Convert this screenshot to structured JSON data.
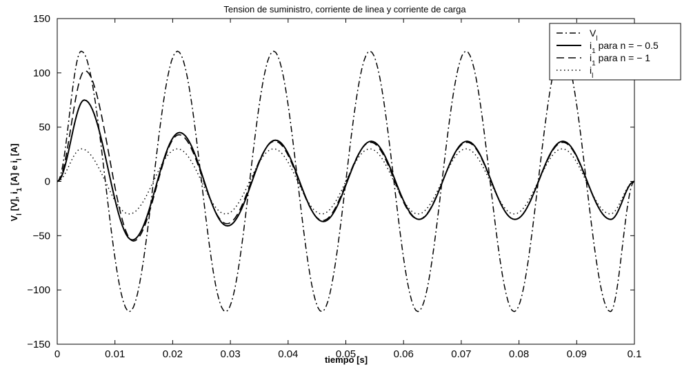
{
  "chart_data": {
    "type": "line",
    "title": "Tension de suministro, corriente de linea y corriente de carga",
    "xlabel": "tiempo [s]",
    "ylabel": {
      "parts": [
        {
          "t": "V",
          "sub": false
        },
        {
          "t": "l",
          "sub": true
        },
        {
          "t": " [V], i",
          "sub": false
        },
        {
          "t": "1",
          "sub": true
        },
        {
          "t": " [A] e i",
          "sub": false
        },
        {
          "t": "l",
          "sub": true
        },
        {
          "t": " [A]",
          "sub": false
        }
      ]
    },
    "xlim": [
      0,
      0.1
    ],
    "ylim": [
      -150,
      150
    ],
    "xticks": [
      0,
      0.01,
      0.02,
      0.03,
      0.04,
      0.05,
      0.06,
      0.07,
      0.08,
      0.09,
      0.1
    ],
    "xtick_labels": [
      "0",
      "0.01",
      "0.02",
      "0.03",
      "0.04",
      "0.05",
      "0.06",
      "0.07",
      "0.08",
      "0.09",
      "0.1"
    ],
    "yticks": [
      -150,
      -100,
      -50,
      0,
      50,
      100,
      150
    ],
    "ytick_labels": [
      "−150",
      "−100",
      "−50",
      "0",
      "50",
      "100",
      "150"
    ],
    "grid": false,
    "legend_position": "top-right",
    "legend": [
      {
        "main": "V",
        "sub": "l",
        "rest": ""
      },
      {
        "main": "i",
        "sub": "1",
        "rest": " para n = − 0.5"
      },
      {
        "main": "i",
        "sub": "1",
        "rest": " para n = − 1"
      },
      {
        "main": "i",
        "sub": "l",
        "rest": ""
      }
    ],
    "series": [
      {
        "style": "dashdot",
        "x": [
          0,
          0.00417,
          0.0125,
          0.02083,
          0.02917,
          0.0375,
          0.04583,
          0.05417,
          0.0625,
          0.07083,
          0.07917,
          0.0875,
          0.09583,
          0.1
        ],
        "y": [
          0,
          120,
          -120,
          120,
          -120,
          120,
          -120,
          120,
          -120,
          120,
          -120,
          120,
          -120,
          0
        ]
      },
      {
        "style": "solid",
        "x": [
          0,
          0.0047,
          0.013,
          0.0212,
          0.0295,
          0.0378,
          0.0461,
          0.0544,
          0.0627,
          0.071,
          0.0793,
          0.0876,
          0.0959,
          0.1
        ],
        "y": [
          0,
          75,
          -54,
          45,
          -41,
          38,
          -37,
          37,
          -35,
          37,
          -35,
          37,
          -35,
          0
        ]
      },
      {
        "style": "dashed",
        "x": [
          0,
          0.0048,
          0.0132,
          0.0211,
          0.0294,
          0.0377,
          0.046,
          0.0543,
          0.0626,
          0.071,
          0.0793,
          0.0876,
          0.0959,
          0.1
        ],
        "y": [
          0,
          102,
          -55,
          43,
          -39,
          37,
          -36,
          36,
          -35,
          36,
          -35,
          36,
          -35,
          0
        ]
      },
      {
        "style": "dotted",
        "x": [
          0,
          0.00417,
          0.0125,
          0.02083,
          0.02917,
          0.0375,
          0.04583,
          0.05417,
          0.0625,
          0.07083,
          0.07917,
          0.0875,
          0.09583,
          0.1
        ],
        "y": [
          0,
          30,
          -30,
          30,
          -30,
          30,
          -30,
          30,
          -30,
          30,
          -30,
          30,
          -30,
          0
        ]
      }
    ]
  }
}
